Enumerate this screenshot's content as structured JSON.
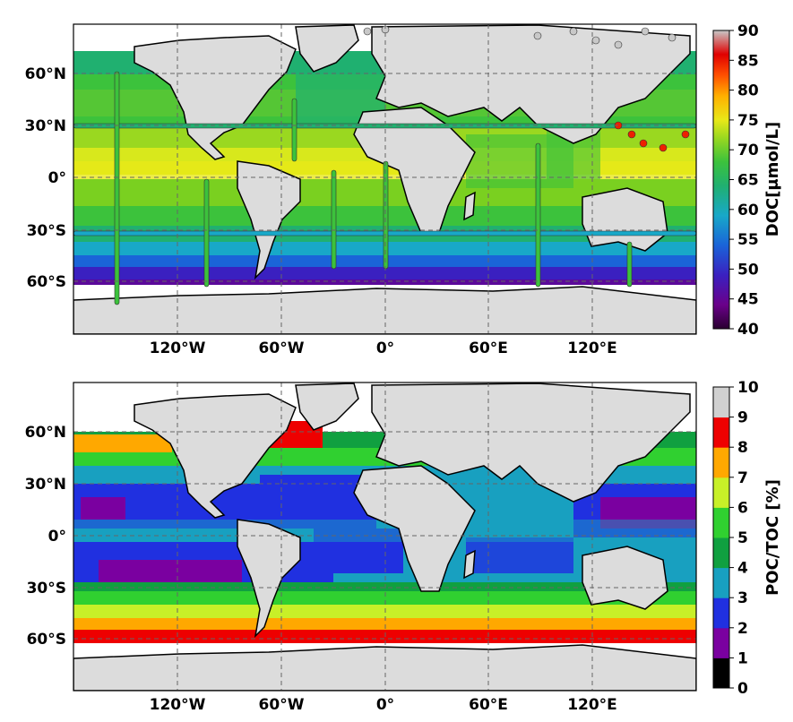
{
  "panels": [
    {
      "id": "doc",
      "lon_ticks": [
        "120°W",
        "60°W",
        "0°",
        "60°E",
        "120°E"
      ],
      "lat_ticks": [
        "60°N",
        "30°N",
        "0°",
        "30°S",
        "60°S"
      ],
      "colorbar": {
        "title": "DOC[μmol/L]",
        "ticks": [
          "40",
          "45",
          "50",
          "55",
          "60",
          "65",
          "70",
          "75",
          "80",
          "85",
          "90"
        ],
        "range": [
          40,
          90
        ],
        "colormap": [
          "#2a0030",
          "#6a008a",
          "#3a20c0",
          "#1a64d8",
          "#18a8c8",
          "#20b070",
          "#3cc23c",
          "#9ad820",
          "#e8e818",
          "#ffb000",
          "#ff5000",
          "#e00000",
          "#c8c8c8"
        ]
      },
      "land_color": "#dcdcdc"
    },
    {
      "id": "poc_toc",
      "lon_ticks": [
        "120°W",
        "60°W",
        "0°",
        "60°E",
        "120°E"
      ],
      "lat_ticks": [
        "60°N",
        "30°N",
        "0°",
        "30°S",
        "60°S"
      ],
      "colorbar": {
        "title": "POC/TOC [%]",
        "ticks": [
          "0",
          "1",
          "2",
          "3",
          "4",
          "5",
          "6",
          "7",
          "8",
          "9",
          "10"
        ],
        "range": [
          0,
          10
        ],
        "classes": [
          "#000000",
          "#7a00a0",
          "#2030e0",
          "#18a0c0",
          "#10a040",
          "#30d030",
          "#c8f028",
          "#ffa800",
          "#ee0000",
          "#d0d0d0"
        ]
      },
      "land_color": "#dcdcdc"
    }
  ]
}
